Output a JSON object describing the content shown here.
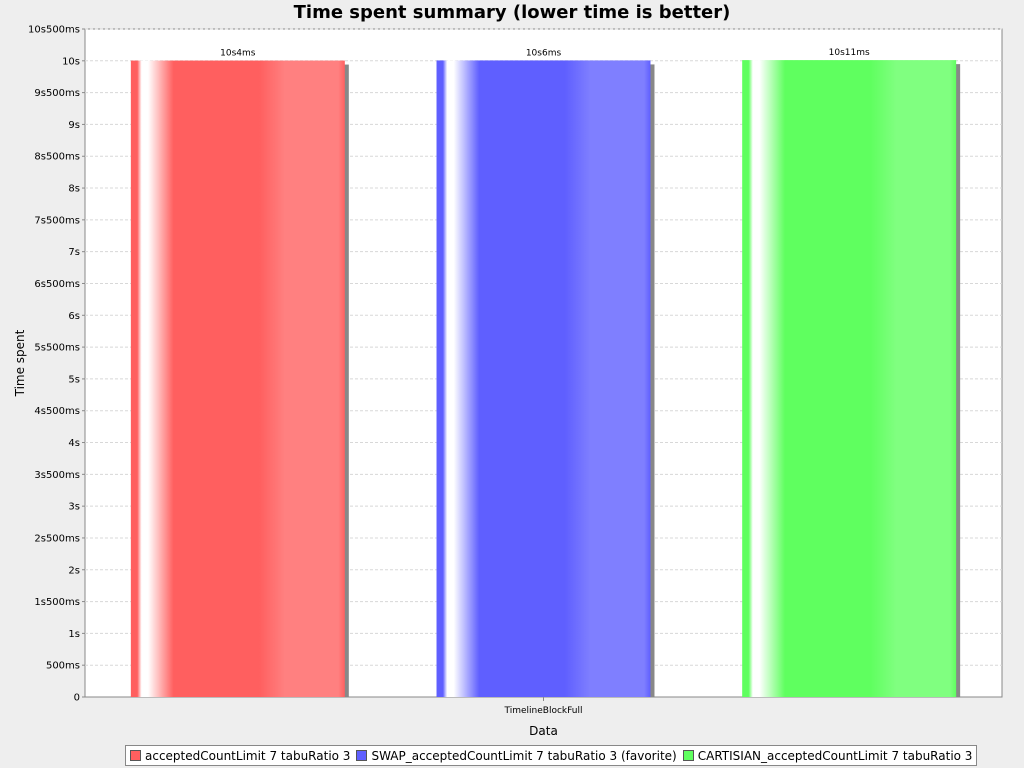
{
  "chart_data": {
    "type": "bar",
    "title": "Time spent summary (lower time is better)",
    "xlabel": "Data",
    "ylabel": "Time spent",
    "categories": [
      "TimelineBlockFull"
    ],
    "ylim": [
      0,
      10500
    ],
    "y_tick_step": 500,
    "y_tick_labels": [
      "0",
      "500ms",
      "1s",
      "1s500ms",
      "2s",
      "2s500ms",
      "3s",
      "3s500ms",
      "4s",
      "4s500ms",
      "5s",
      "5s500ms",
      "6s",
      "6s500ms",
      "7s",
      "7s500ms",
      "8s",
      "8s500ms",
      "9s",
      "9s500ms",
      "10s",
      "10s500ms"
    ],
    "grid": true,
    "legend_position": "bottom",
    "series": [
      {
        "name": "acceptedCountLimit 7 tabuRatio 3",
        "values": [
          10004
        ],
        "label": "10s4ms",
        "color": "#ff5f5f",
        "light": "#ff8080"
      },
      {
        "name": "SWAP_acceptedCountLimit 7 tabuRatio 3 (favorite)",
        "values": [
          10006
        ],
        "label": "10s6ms",
        "color": "#5f5fff",
        "light": "#7f7fff"
      },
      {
        "name": "CARTISIAN_acceptedCountLimit 7 tabuRatio 3",
        "values": [
          10011
        ],
        "label": "10s11ms",
        "color": "#5fff5f",
        "light": "#80ff80"
      }
    ]
  }
}
